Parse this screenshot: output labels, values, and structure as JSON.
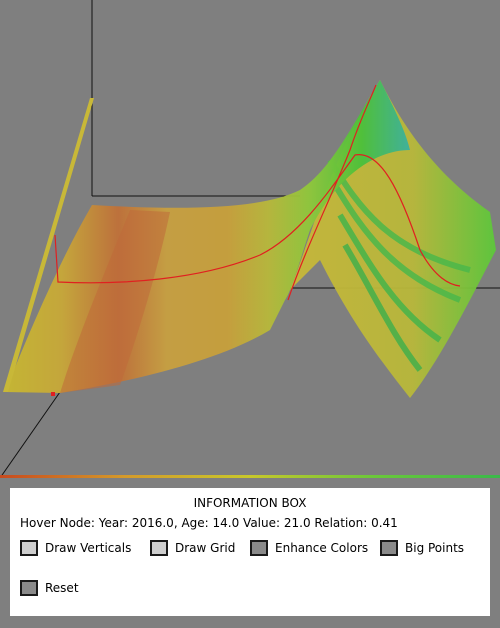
{
  "info_box": {
    "title": "INFORMATION BOX",
    "hover_text": "Hover Node: Year: 2016.0, Age: 14.0 Value: 21.0 Relation: 0.41"
  },
  "controls": [
    {
      "id": "draw-verticals",
      "label": "Draw Verticals",
      "checked": false
    },
    {
      "id": "draw-grid",
      "label": "Draw Grid",
      "checked": false
    },
    {
      "id": "enhance-colors",
      "label": "Enhance Colors",
      "checked": true
    },
    {
      "id": "big-points",
      "label": "Big Points",
      "checked": true
    },
    {
      "id": "reset",
      "label": "Reset",
      "checked": true
    }
  ],
  "colors": {
    "background": "#7f7f7f",
    "surface_low": "#c8c82a",
    "surface_mid": "#c87a3a",
    "surface_high": "#3ab94a",
    "highlight_line": "#e02020"
  }
}
